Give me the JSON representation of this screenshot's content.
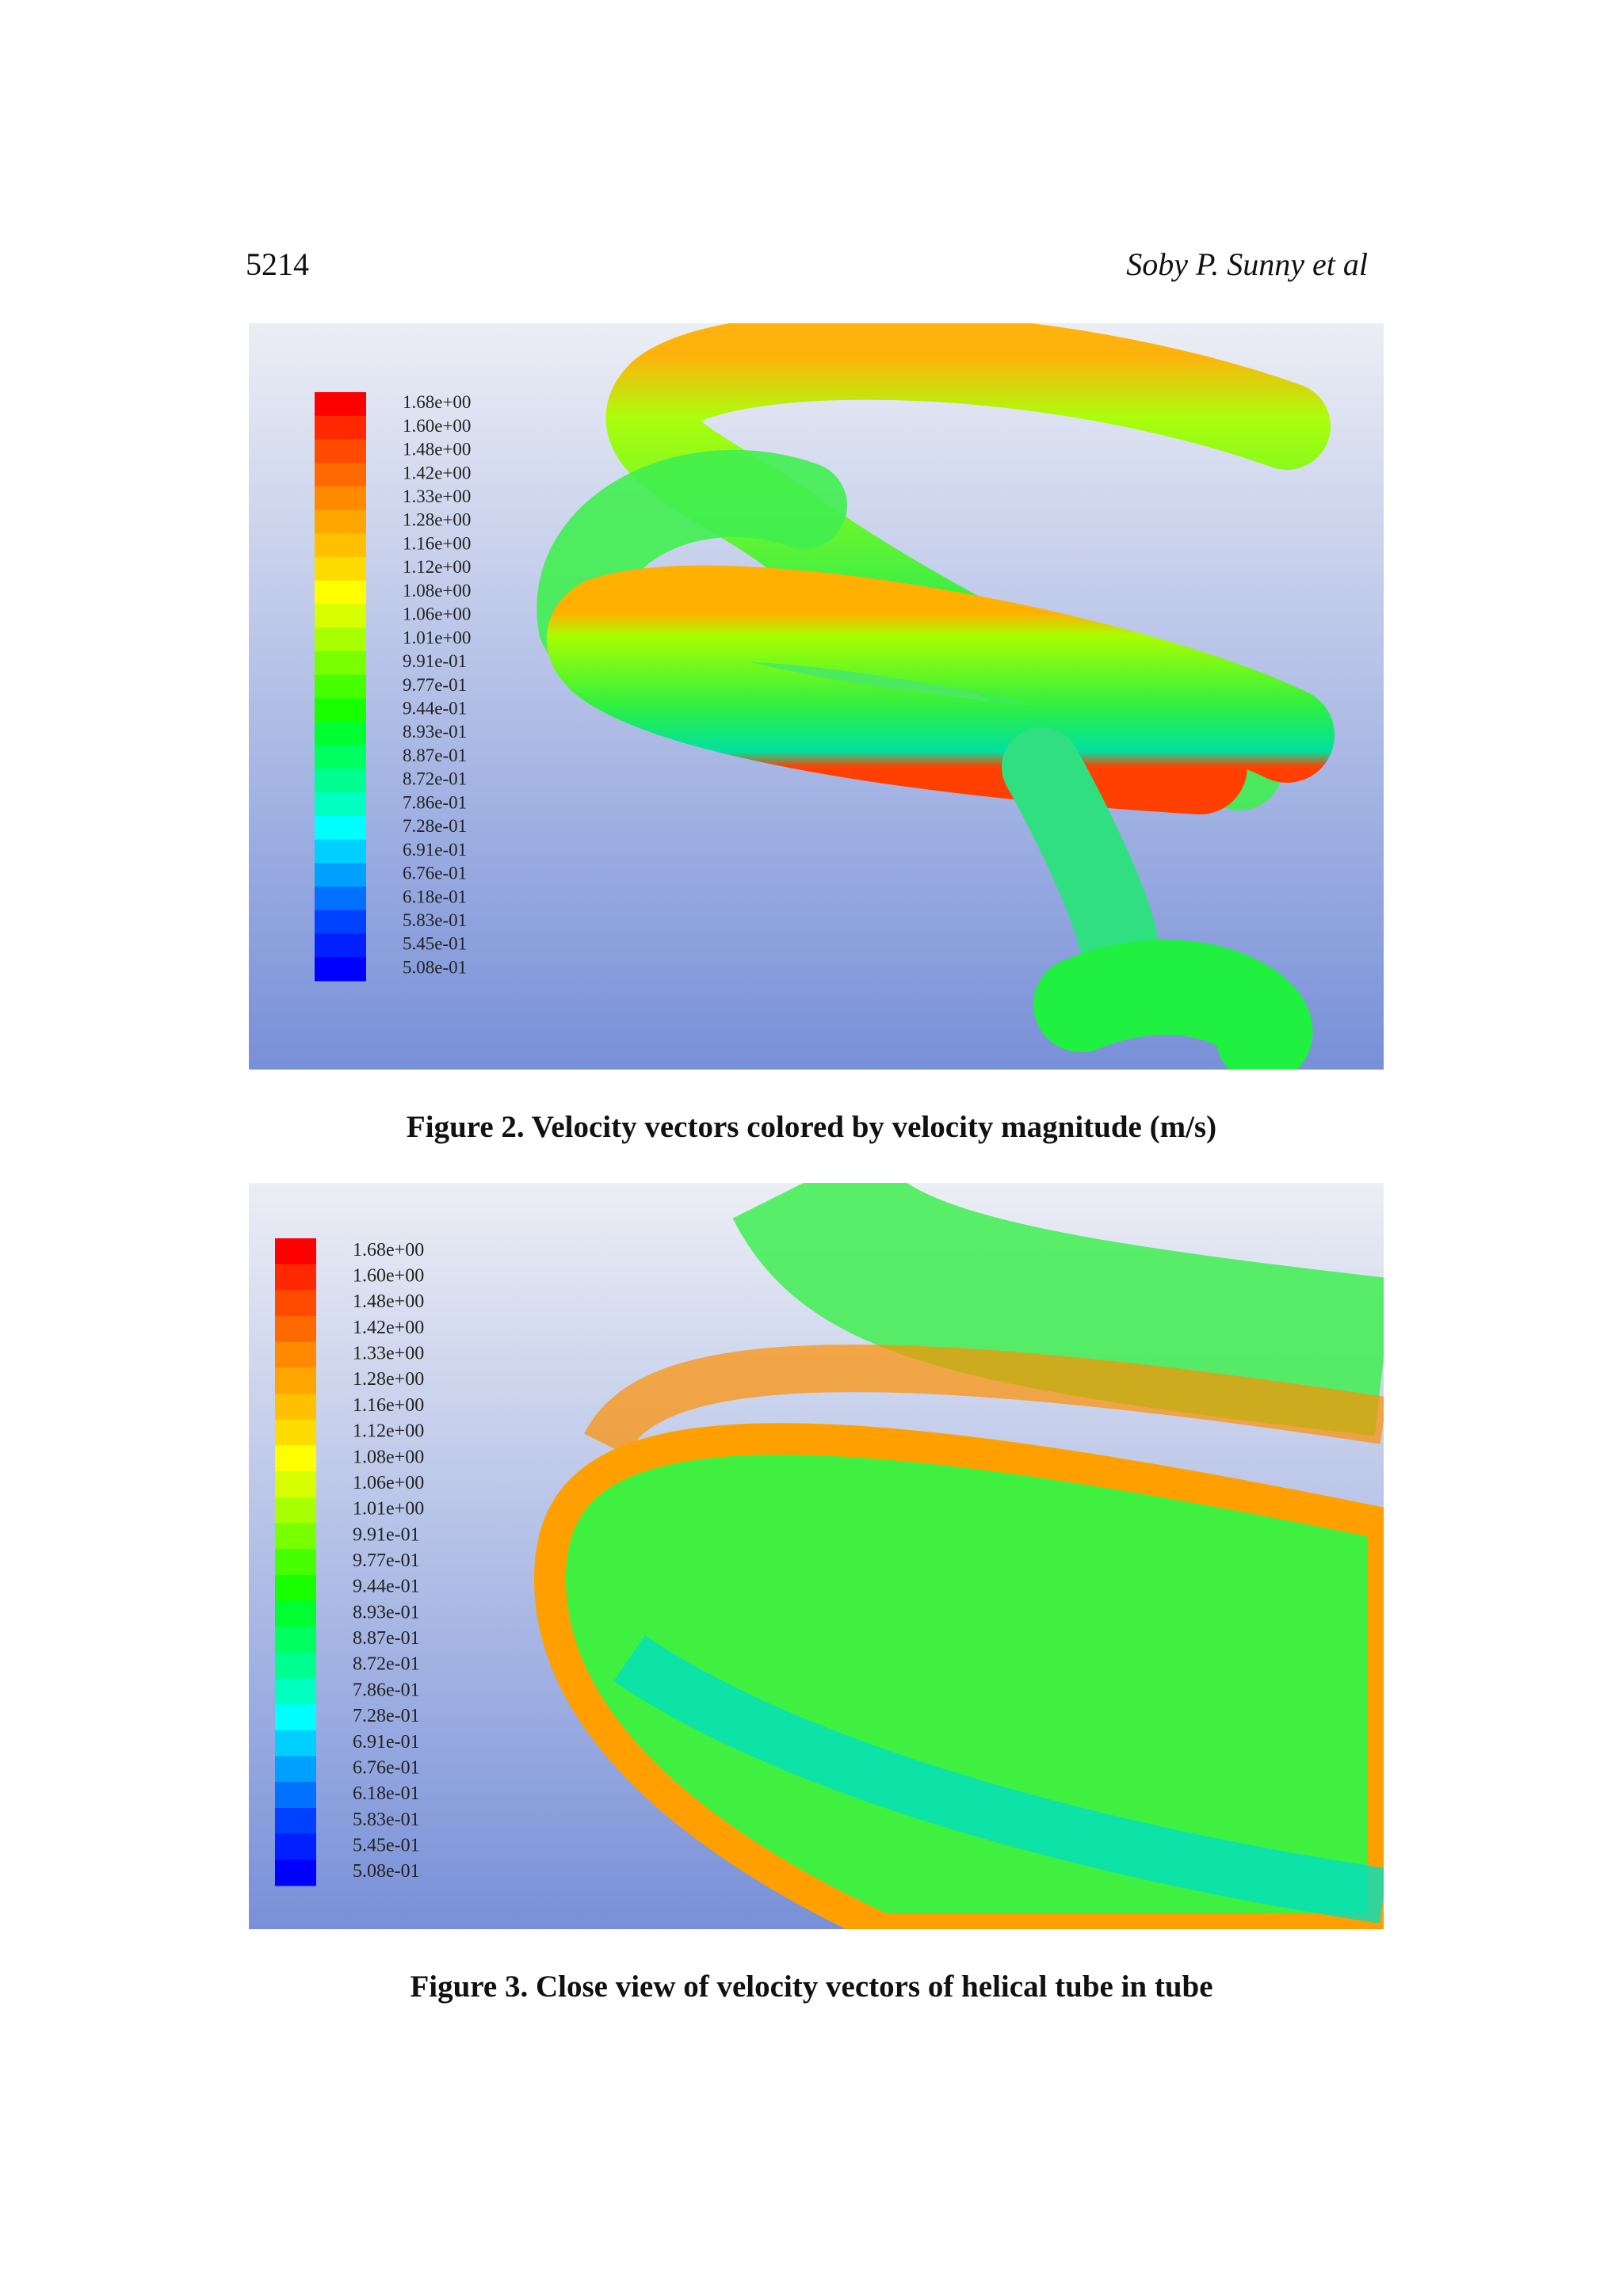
{
  "header": {
    "page_number": "5214",
    "author": "Soby P. Sunny et al"
  },
  "colormap": [
    "#ff0000",
    "#ff2800",
    "#ff4a00",
    "#ff6a00",
    "#ff8a00",
    "#ffa500",
    "#ffc000",
    "#ffdc00",
    "#ffff00",
    "#d8ff00",
    "#a8ff00",
    "#78ff00",
    "#48ff00",
    "#18ff00",
    "#00ff30",
    "#00ff60",
    "#00ff90",
    "#00ffc0",
    "#00ffff",
    "#00d0ff",
    "#00a0ff",
    "#0070ff",
    "#0040ff",
    "#0020ff",
    "#0000ff"
  ],
  "figures": [
    {
      "caption": "Figure 2. Velocity vectors colored by velocity magnitude (m/s)",
      "colorbar_labels": [
        "1.68e+00",
        "1.60e+00",
        "1.48e+00",
        "1.42e+00",
        "1.33e+00",
        "1.28e+00",
        "1.16e+00",
        "1.12e+00",
        "1.08e+00",
        "1.06e+00",
        "1.01e+00",
        "9.91e-01",
        "9.77e-01",
        "9.44e-01",
        "8.93e-01",
        "8.87e-01",
        "8.72e-01",
        "7.86e-01",
        "7.28e-01",
        "6.91e-01",
        "6.76e-01",
        "6.18e-01",
        "5.83e-01",
        "5.45e-01",
        "5.08e-01"
      ]
    },
    {
      "caption": "Figure 3. Close view of velocity vectors of helical tube in tube",
      "colorbar_labels": [
        "1.68e+00",
        "1.60e+00",
        "1.48e+00",
        "1.42e+00",
        "1.33e+00",
        "1.28e+00",
        "1.16e+00",
        "1.12e+00",
        "1.08e+00",
        "1.06e+00",
        "1.01e+00",
        "9.91e-01",
        "9.77e-01",
        "9.44e-01",
        "8.93e-01",
        "8.87e-01",
        "8.72e-01",
        "7.86e-01",
        "7.28e-01",
        "6.91e-01",
        "6.76e-01",
        "6.18e-01",
        "5.83e-01",
        "5.45e-01",
        "5.08e-01"
      ]
    }
  ]
}
